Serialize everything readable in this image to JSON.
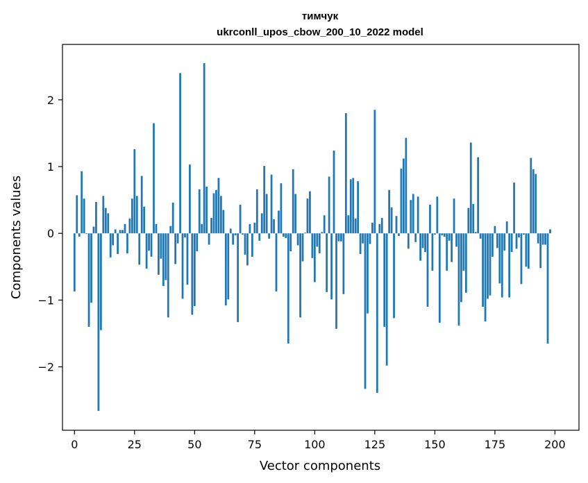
{
  "chart_data": {
    "type": "bar",
    "title": "тимчук",
    "subtitle": "ukrconll_upos_cbow_200_10_2022 model",
    "xlabel": "Vector components",
    "ylabel": "Components values",
    "xlim": [
      -5,
      210
    ],
    "ylim": [
      -2.95,
      2.83
    ],
    "xticks": [
      0,
      25,
      50,
      75,
      100,
      125,
      150,
      175,
      200
    ],
    "yticks": [
      -2,
      -1,
      0,
      1,
      2
    ],
    "ytick_labels": [
      "−2",
      "−1",
      "0",
      "1",
      "2"
    ],
    "grid": false,
    "bar_color": "#1f77b4",
    "values": [
      -0.87,
      0.57,
      -0.05,
      0.93,
      0.52,
      -0.01,
      -1.4,
      -1.04,
      0.1,
      0.47,
      -2.66,
      -1.45,
      0.56,
      0.38,
      0.3,
      -0.36,
      -0.18,
      0.06,
      -0.31,
      0.05,
      0.05,
      0.14,
      -0.3,
      0.22,
      0.52,
      1.26,
      0.56,
      -0.47,
      0.86,
      0.4,
      -0.53,
      -0.26,
      -0.35,
      1.65,
      0.14,
      -0.62,
      -0.38,
      -0.79,
      -0.7,
      -1.26,
      0.11,
      0.46,
      -0.46,
      -0.15,
      2.4,
      -0.98,
      -0.06,
      -0.77,
      1.03,
      -1.22,
      -1.09,
      -0.27,
      0.66,
      0.14,
      2.55,
      0.7,
      -0.17,
      0.23,
      0.6,
      0.65,
      0.83,
      0.56,
      0.35,
      -1.08,
      -0.99,
      0.07,
      -0.17,
      -0.03,
      -1.33,
      0.43,
      -0.02,
      -0.32,
      -0.48,
      0.14,
      -0.35,
      0.16,
      0.66,
      -0.11,
      0.3,
      1.01,
      0.59,
      -0.08,
      0.88,
      0.21,
      -0.87,
      0.34,
      0.75,
      -0.05,
      -0.07,
      -1.65,
      -0.27,
      0.96,
      0.59,
      -0.18,
      -1.26,
      -0.42,
      0.01,
      0.52,
      0.63,
      -0.37,
      -0.73,
      -0.2,
      -0.3,
      0.02,
      0.27,
      -0.88,
      0.85,
      -0.99,
      1.24,
      -1.43,
      -0.12,
      -0.12,
      -0.91,
      1.8,
      0.27,
      0.81,
      0.83,
      0.22,
      0.78,
      -0.31,
      -0.15,
      -2.33,
      -1.2,
      -0.16,
      0.16,
      1.85,
      -2.39,
      0.14,
      0.23,
      -1.4,
      -1.98,
      0.65,
      0.39,
      -1.27,
      0.26,
      -0.04,
      0.97,
      1.12,
      1.43,
      -0.23,
      0.5,
      0.59,
      -0.13,
      0.55,
      -0.41,
      -0.22,
      -0.28,
      -1.1,
      0.43,
      -0.56,
      -0.02,
      0.55,
      -1.34,
      -0.03,
      -0.05,
      -0.56,
      -0.11,
      -0.43,
      0.52,
      -0.2,
      -1.38,
      -1.03,
      -0.56,
      -0.89,
      0.38,
      1.36,
      0.44,
      0.02,
      1.14,
      -0.08,
      -1.1,
      -1.32,
      -0.98,
      -0.93,
      -0.35,
      0.11,
      -0.22,
      -0.75,
      -0.96,
      -0.26,
      0.18,
      -0.96,
      -0.28,
      0.76,
      -0.23,
      -0.06,
      -0.76,
      -0.02,
      -0.5,
      -0.53,
      1.13,
      0.96,
      0.89,
      -0.15,
      -0.52,
      -0.17,
      -0.17,
      -1.65,
      0.06
    ]
  }
}
